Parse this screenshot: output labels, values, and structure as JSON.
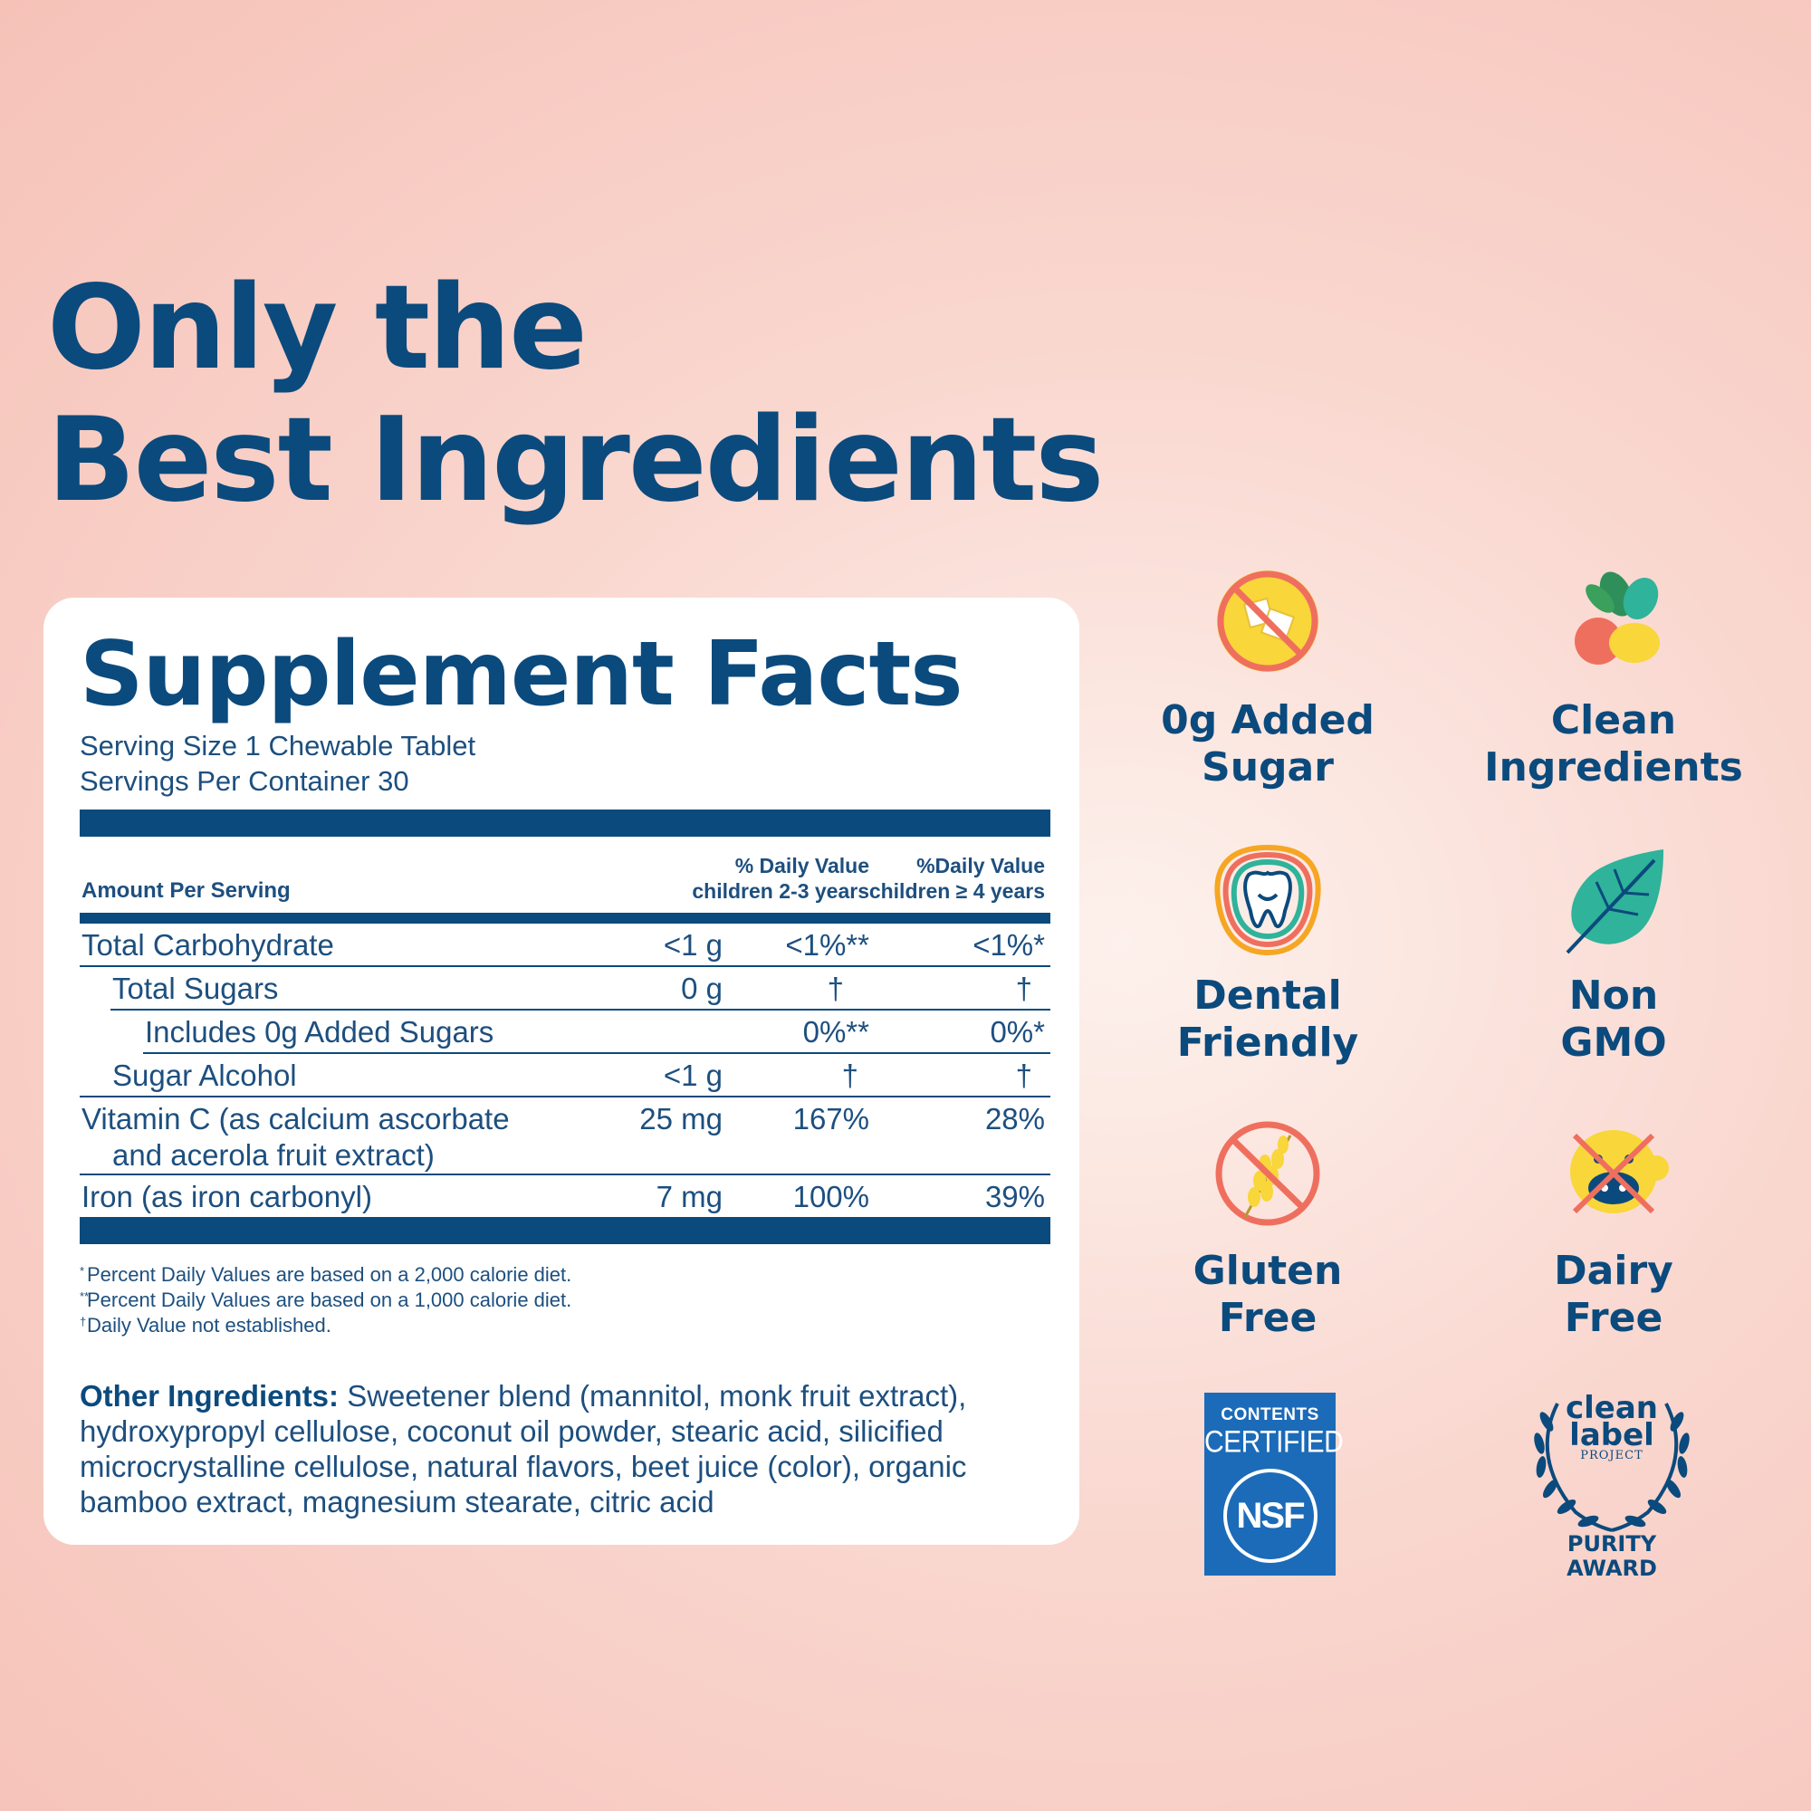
{
  "headline": {
    "line1": "Only the",
    "line2": "Best Ingredients"
  },
  "facts": {
    "title": "Supplement Facts",
    "serving_size": "Serving Size 1 Chewable Tablet",
    "servings_per_container": "Servings Per Container 30",
    "header": {
      "amount_per_serving": "Amount Per Serving",
      "dv1_line1": "% Daily Value",
      "dv1_line2": "children 2-3 years",
      "dv2_line1": "%Daily Value",
      "dv2_line2": "children ≥ 4 years"
    },
    "rows": [
      {
        "name": "Total Carbohydrate",
        "amount": "<1 g",
        "dv1": "<1%**",
        "dv2": "<1%*"
      },
      {
        "name": "Total Sugars",
        "amount": "0 g",
        "dv1": "†",
        "dv2": "†"
      },
      {
        "name": "Includes 0g Added Sugars",
        "amount": "",
        "dv1": "0%**",
        "dv2": "0%*"
      },
      {
        "name": "Sugar Alcohol",
        "amount": "<1 g",
        "dv1": "†",
        "dv2": "†"
      },
      {
        "name_line1": "Vitamin C (as calcium ascorbate",
        "name_line2": "and acerola fruit extract)",
        "amount": "25 mg",
        "dv1": "167%",
        "dv2": "28%"
      },
      {
        "name": "Iron (as iron carbonyl)",
        "amount": "7 mg",
        "dv1": "100%",
        "dv2": "39%"
      }
    ],
    "footnotes": [
      {
        "mark": "*",
        "text": "Percent Daily Values are based on a 2,000 calorie diet."
      },
      {
        "mark": "**",
        "text": "Percent Daily Values are based on a 1,000 calorie diet."
      },
      {
        "mark": "†",
        "text": "Daily Value not established."
      }
    ],
    "other_label": "Other Ingredients:",
    "other_text": " Sweetener blend (mannitol, monk fruit extract), hydroxypropyl cellulose, coconut oil powder, stearic acid, silicified microcrystalline cellulose, natural flavors, beet juice (color), organic bamboo extract, magnesium stearate, citric acid"
  },
  "badges": [
    {
      "icon": "no-sugar-icon",
      "line1": "0g Added",
      "line2": "Sugar"
    },
    {
      "icon": "fruit-vegetable-icon",
      "line1": "Clean",
      "line2": "Ingredients"
    },
    {
      "icon": "tooth-icon",
      "line1": "Dental",
      "line2": "Friendly"
    },
    {
      "icon": "leaf-icon",
      "line1": "Non",
      "line2": "GMO"
    },
    {
      "icon": "no-wheat-icon",
      "line1": "Gluten",
      "line2": "Free"
    },
    {
      "icon": "no-cow-icon",
      "line1": "Dairy",
      "line2": "Free"
    }
  ],
  "nsf": {
    "line1": "CONTENTS",
    "line2": "CERTIFIED",
    "logo": "NSF"
  },
  "clean_label": {
    "w1": "clean",
    "w2": "label",
    "w3": "PROJECT",
    "award1": "PURITY",
    "award2": "AWARD"
  },
  "colors": {
    "navy": "#0b4a7d",
    "background": "#f9d7cf",
    "nsf_blue": "#1c6bb8",
    "yellow": "#f9d63a",
    "coral": "#ef6f5e",
    "teal": "#2fb39a"
  }
}
